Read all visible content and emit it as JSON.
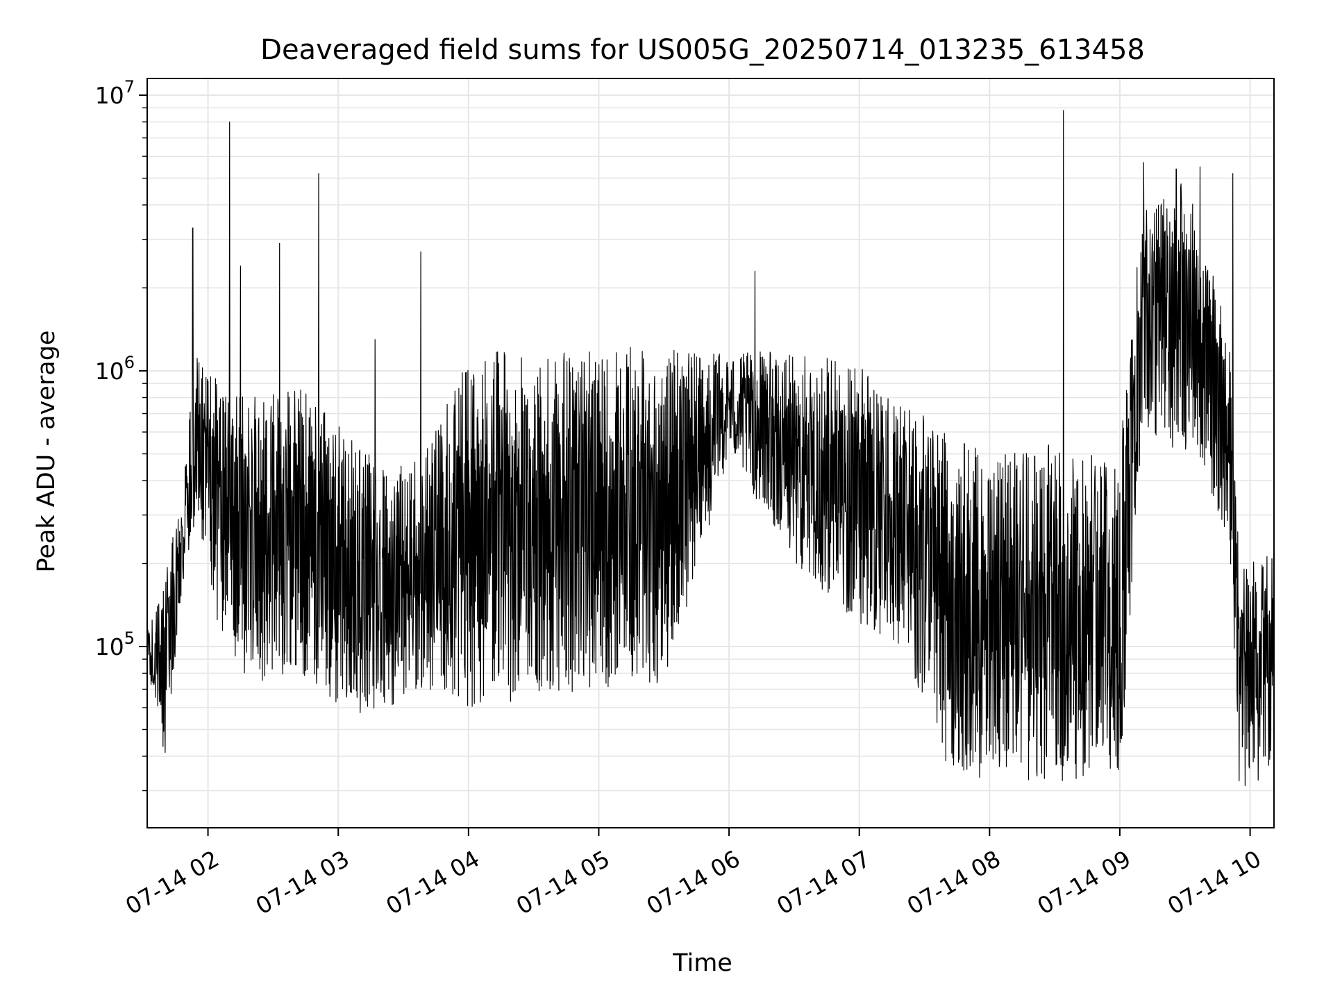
{
  "chart_data": {
    "type": "line",
    "title": "Deaveraged field sums for US005G_20250714_013235_613458",
    "xlabel": "Time",
    "ylabel": "Peak ADU - average",
    "yscale": "log",
    "ylim": [
      22000,
      11500000
    ],
    "xlim": [
      "2025-07-14 01:32",
      "2025-07-14 10:11"
    ],
    "x_ticks": [
      {
        "label": "07-14 02",
        "value": "2025-07-14 02:00"
      },
      {
        "label": "07-14 03",
        "value": "2025-07-14 03:00"
      },
      {
        "label": "07-14 04",
        "value": "2025-07-14 04:00"
      },
      {
        "label": "07-14 05",
        "value": "2025-07-14 05:00"
      },
      {
        "label": "07-14 06",
        "value": "2025-07-14 06:00"
      },
      {
        "label": "07-14 07",
        "value": "2025-07-14 07:00"
      },
      {
        "label": "07-14 08",
        "value": "2025-07-14 08:00"
      },
      {
        "label": "07-14 09",
        "value": "2025-07-14 09:00"
      },
      {
        "label": "07-14 10",
        "value": "2025-07-14 10:00"
      }
    ],
    "y_ticks": [
      {
        "base": "10",
        "exp": "5",
        "value": 100000
      },
      {
        "base": "10",
        "exp": "6",
        "value": 1000000
      },
      {
        "base": "10",
        "exp": "7",
        "value": 10000000
      }
    ],
    "grid": true,
    "line_color": "#000000",
    "grid_color": "#e6e6e6",
    "envelope": [
      {
        "t": "2025-07-14 01:32",
        "low": 85000,
        "high": 115000
      },
      {
        "t": "2025-07-14 01:40",
        "low": 38000,
        "high": 170000
      },
      {
        "t": "2025-07-14 01:48",
        "low": 150000,
        "high": 400000
      },
      {
        "t": "2025-07-14 01:55",
        "low": 300000,
        "high": 1200000
      },
      {
        "t": "2025-07-14 02:05",
        "low": 110000,
        "high": 900000
      },
      {
        "t": "2025-07-14 02:20",
        "low": 70000,
        "high": 800000
      },
      {
        "t": "2025-07-14 02:40",
        "low": 80000,
        "high": 900000
      },
      {
        "t": "2025-07-14 03:00",
        "low": 60000,
        "high": 650000
      },
      {
        "t": "2025-07-14 03:20",
        "low": 55000,
        "high": 450000
      },
      {
        "t": "2025-07-14 03:40",
        "low": 70000,
        "high": 500000
      },
      {
        "t": "2025-07-14 04:00",
        "low": 60000,
        "high": 1150000
      },
      {
        "t": "2025-07-14 04:30",
        "low": 65000,
        "high": 1200000
      },
      {
        "t": "2025-07-14 05:00",
        "low": 70000,
        "high": 1250000
      },
      {
        "t": "2025-07-14 05:30",
        "low": 70000,
        "high": 1200000
      },
      {
        "t": "2025-07-14 06:00",
        "low": 500000,
        "high": 1150000
      },
      {
        "t": "2025-07-14 06:30",
        "low": 200000,
        "high": 1200000
      },
      {
        "t": "2025-07-14 07:00",
        "low": 120000,
        "high": 1050000
      },
      {
        "t": "2025-07-14 07:20",
        "low": 100000,
        "high": 800000
      },
      {
        "t": "2025-07-14 07:40",
        "low": 38000,
        "high": 600000
      },
      {
        "t": "2025-07-14 08:00",
        "low": 32000,
        "high": 500000
      },
      {
        "t": "2025-07-14 08:30",
        "low": 32000,
        "high": 550000
      },
      {
        "t": "2025-07-14 09:00",
        "low": 32000,
        "high": 500000
      },
      {
        "t": "2025-07-14 09:10",
        "low": 600000,
        "high": 4000000
      },
      {
        "t": "2025-07-14 09:30",
        "low": 500000,
        "high": 5000000
      },
      {
        "t": "2025-07-14 09:50",
        "low": 250000,
        "high": 1500000
      },
      {
        "t": "2025-07-14 09:55",
        "low": 30000,
        "high": 200000
      },
      {
        "t": "2025-07-14 10:11",
        "low": 35000,
        "high": 250000
      }
    ],
    "spikes": [
      {
        "t": "2025-07-14 01:53",
        "value": 3300000
      },
      {
        "t": "2025-07-14 02:10",
        "value": 8000000
      },
      {
        "t": "2025-07-14 02:15",
        "value": 2400000
      },
      {
        "t": "2025-07-14 02:33",
        "value": 2900000
      },
      {
        "t": "2025-07-14 02:51",
        "value": 5200000
      },
      {
        "t": "2025-07-14 03:17",
        "value": 1300000
      },
      {
        "t": "2025-07-14 03:38",
        "value": 2700000
      },
      {
        "t": "2025-07-14 06:12",
        "value": 2300000
      },
      {
        "t": "2025-07-14 08:34",
        "value": 8800000
      },
      {
        "t": "2025-07-14 09:11",
        "value": 5700000
      },
      {
        "t": "2025-07-14 09:26",
        "value": 5400000
      },
      {
        "t": "2025-07-14 09:37",
        "value": 5500000
      },
      {
        "t": "2025-07-14 09:52",
        "value": 5200000
      }
    ]
  }
}
